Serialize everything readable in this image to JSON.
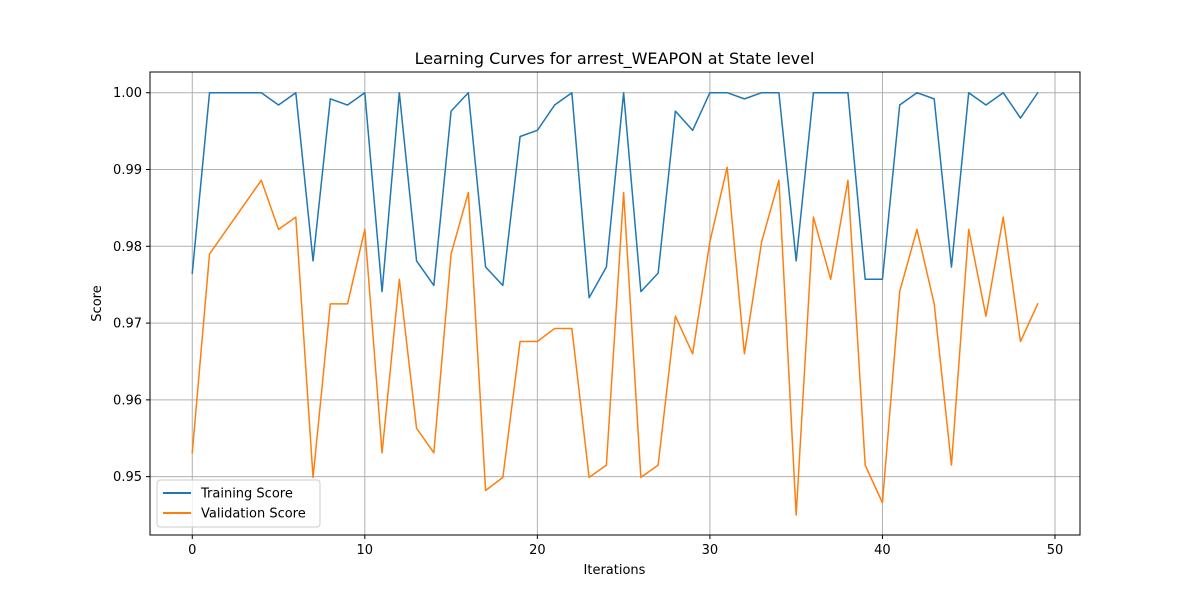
{
  "chart_data": {
    "type": "line",
    "title": "Learning Curves for arrest_WEAPON at State level",
    "xlabel": "Iterations",
    "ylabel": "Score",
    "xlim": [
      -2.45,
      51.45
    ],
    "ylim": [
      0.9424,
      1.0027
    ],
    "xticks": [
      0,
      10,
      20,
      30,
      40,
      50
    ],
    "yticks": [
      0.95,
      0.96,
      0.97,
      0.98,
      0.99,
      1.0
    ],
    "ytick_labels": [
      "0.95",
      "0.96",
      "0.97",
      "0.98",
      "0.99",
      "1.00"
    ],
    "grid": true,
    "legend_position": "lower-left",
    "x": [
      0,
      1,
      2,
      3,
      4,
      5,
      6,
      7,
      8,
      9,
      10,
      11,
      12,
      13,
      14,
      15,
      16,
      17,
      18,
      19,
      20,
      21,
      22,
      23,
      24,
      25,
      26,
      27,
      28,
      29,
      30,
      31,
      32,
      33,
      34,
      35,
      36,
      37,
      38,
      39,
      40,
      41,
      42,
      43,
      44,
      45,
      46,
      47,
      48,
      49
    ],
    "series": [
      {
        "name": "Training Score",
        "color": "#1f77b4",
        "values": [
          0.9765,
          1.0,
          1.0,
          1.0,
          1.0,
          0.9984,
          1.0,
          0.9781,
          0.9992,
          0.9984,
          1.0,
          0.9741,
          1.0,
          0.9781,
          0.9749,
          0.9976,
          1.0,
          0.9773,
          0.9749,
          0.9943,
          0.9951,
          0.9984,
          1.0,
          0.9733,
          0.9773,
          1.0,
          0.9741,
          0.9765,
          0.9976,
          0.9951,
          1.0,
          1.0,
          0.9992,
          1.0,
          1.0,
          0.9781,
          1.0,
          1.0,
          1.0,
          0.9757,
          0.9757,
          0.9984,
          1.0,
          0.9992,
          0.9773,
          1.0,
          0.9984,
          1.0,
          0.9967,
          1.0
        ]
      },
      {
        "name": "Validation Score",
        "color": "#ff7f0e",
        "values": [
          0.9531,
          0.979,
          0.9822,
          0.9854,
          0.9886,
          0.9822,
          0.9838,
          0.9499,
          0.9725,
          0.9725,
          0.9822,
          0.9531,
          0.9757,
          0.9563,
          0.9531,
          0.979,
          0.987,
          0.9482,
          0.9499,
          0.9676,
          0.9676,
          0.9693,
          0.9693,
          0.9499,
          0.9515,
          0.987,
          0.9499,
          0.9515,
          0.9709,
          0.966,
          0.9806,
          0.9903,
          0.966,
          0.9806,
          0.9886,
          0.945,
          0.9838,
          0.9757,
          0.9886,
          0.9515,
          0.9466,
          0.9741,
          0.9822,
          0.9725,
          0.9515,
          0.9822,
          0.9709,
          0.9838,
          0.9676,
          0.9725
        ]
      }
    ]
  }
}
